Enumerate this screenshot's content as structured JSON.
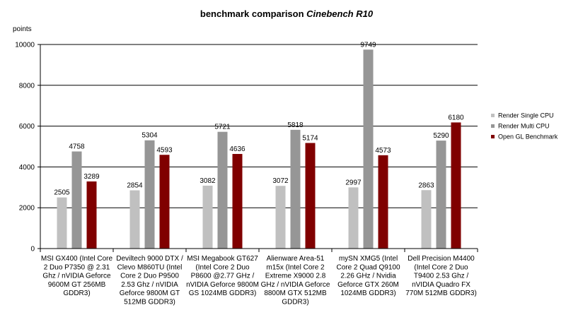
{
  "chart_data": {
    "type": "bar",
    "title_prefix": "benchmark comparison ",
    "title_emph": "Cinebench R10",
    "ylabel": "points",
    "xlabel": "",
    "ylim": [
      0,
      10000
    ],
    "yticks": [
      0,
      2000,
      4000,
      6000,
      8000,
      10000
    ],
    "grid": true,
    "legend_position": "right",
    "categories": [
      [
        "MSI GX400 (Intel Core",
        "2 Duo P7350 @ 2.31",
        "Ghz / nVIDIA Geforce",
        "9600M GT 256MB",
        "GDDR3)"
      ],
      [
        "Deviltech 9000 DTX /",
        "Clevo M860TU (Intel",
        "Core 2 Duo P9500",
        "2.53 Ghz / nVIDIA",
        "Geforce 9800M GT",
        "512MB GDDR3)"
      ],
      [
        "MSI Megabook GT627",
        "(Intel Core 2 Duo",
        "P8600 @2.77 GHz /",
        "nVIDIA Geforce 9800M",
        "GS 1024MB GDDR3)"
      ],
      [
        "Alienware Area-51",
        "m15x (Intel Core 2",
        "Extreme X9000 2.8",
        "GHz / nVIDIA Geforce",
        "8800M GTX 512MB",
        "GDDR3)"
      ],
      [
        "mySN XMG5 (Intel",
        "Core 2 Quad Q9100",
        "2.26 GHz / Nvidia",
        "Geforce GTX 260M",
        "1024MB GDDR3)"
      ],
      [
        "Dell Precision M4400",
        "(Intel Core 2 Duo",
        "T9400 2.53 Ghz /",
        "nVIDIA Quadro FX",
        "770M 512MB GDDR3)"
      ]
    ],
    "series": [
      {
        "name": "Render Single CPU",
        "color": "#c0c0c0",
        "values": [
          2505,
          2854,
          3082,
          3072,
          2997,
          2863
        ]
      },
      {
        "name": "Render Multi CPU",
        "color": "#969696",
        "values": [
          4758,
          5304,
          5721,
          5818,
          9749,
          5290
        ]
      },
      {
        "name": "Open GL Benchmark",
        "color": "#800000",
        "values": [
          3289,
          4593,
          4636,
          5174,
          4573,
          6180
        ]
      }
    ]
  }
}
